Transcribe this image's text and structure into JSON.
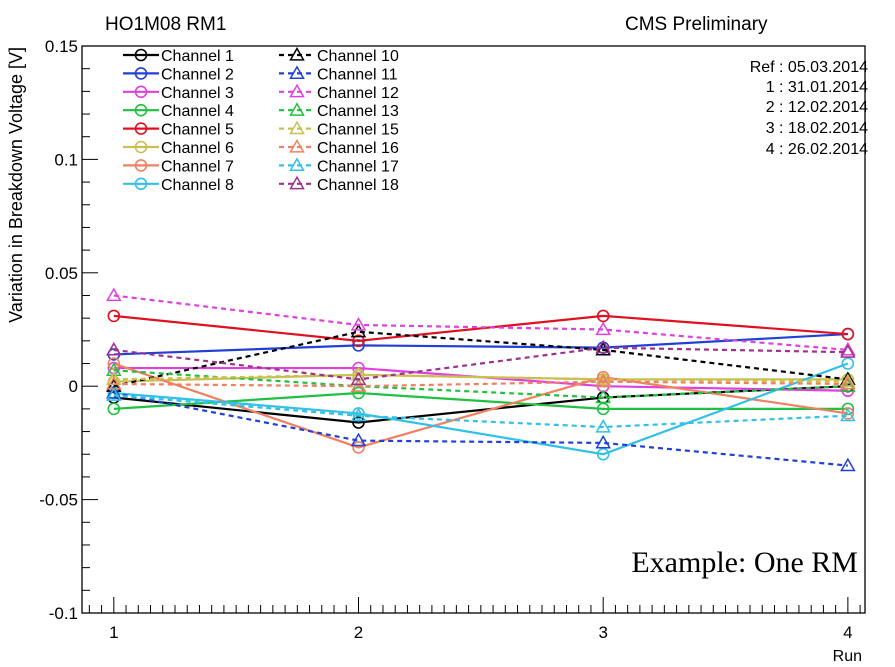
{
  "header": {
    "left_title": "HO1M08 RM1",
    "right_title": "CMS Preliminary"
  },
  "chart_data": {
    "type": "line",
    "xlabel": "Run",
    "ylabel": "Variation in Breakdown Voltage [V]",
    "x": [
      1,
      2,
      3,
      4
    ],
    "xlim": [
      0.87,
      4.07
    ],
    "ylim": [
      -0.1,
      0.15
    ],
    "xticks": [
      1,
      2,
      3,
      4
    ],
    "yticks": [
      -0.1,
      -0.05,
      0,
      0.05,
      0.1,
      0.15
    ],
    "ytick_labels": [
      "-0.1",
      "-0.05",
      "0",
      "0.05",
      "0.1",
      "0.15"
    ],
    "grid": false,
    "legend_position": "top-left",
    "series": [
      {
        "name": "Channel 1",
        "color": "#000000",
        "style": "solid",
        "marker": "circle",
        "values": [
          -0.005,
          -0.016,
          -0.005,
          0.0
        ]
      },
      {
        "name": "Channel 2",
        "color": "#2040d8",
        "style": "solid",
        "marker": "circle",
        "values": [
          0.014,
          0.018,
          0.017,
          0.023
        ]
      },
      {
        "name": "Channel 3",
        "color": "#e040e0",
        "style": "solid",
        "marker": "circle",
        "values": [
          0.008,
          0.008,
          0.0,
          -0.002
        ]
      },
      {
        "name": "Channel 4",
        "color": "#20c040",
        "style": "solid",
        "marker": "circle",
        "values": [
          -0.01,
          -0.003,
          -0.01,
          -0.01
        ]
      },
      {
        "name": "Channel 5",
        "color": "#e01020",
        "style": "solid",
        "marker": "circle",
        "values": [
          0.031,
          0.02,
          0.031,
          0.023
        ]
      },
      {
        "name": "Channel 6",
        "color": "#c8c050",
        "style": "solid",
        "marker": "circle",
        "values": [
          0.002,
          0.005,
          0.003,
          0.003
        ]
      },
      {
        "name": "Channel 7",
        "color": "#f08060",
        "style": "solid",
        "marker": "circle",
        "values": [
          0.01,
          -0.027,
          0.004,
          -0.012
        ]
      },
      {
        "name": "Channel 8",
        "color": "#30c0e8",
        "style": "solid",
        "marker": "circle",
        "values": [
          -0.003,
          -0.012,
          -0.03,
          0.01
        ]
      },
      {
        "name": "Channel 10",
        "color": "#000000",
        "style": "dashed",
        "marker": "triangle",
        "values": [
          0.0,
          0.024,
          0.016,
          0.003
        ]
      },
      {
        "name": "Channel 11",
        "color": "#2040d8",
        "style": "dashed",
        "marker": "triangle",
        "values": [
          -0.003,
          -0.024,
          -0.025,
          -0.035
        ]
      },
      {
        "name": "Channel 12",
        "color": "#e040e0",
        "style": "dashed",
        "marker": "triangle",
        "values": [
          0.04,
          0.027,
          0.025,
          0.016
        ]
      },
      {
        "name": "Channel 13",
        "color": "#20c040",
        "style": "dashed",
        "marker": "triangle",
        "values": [
          0.007,
          0.0,
          -0.005,
          0.0
        ]
      },
      {
        "name": "Channel 15",
        "color": "#c8c050",
        "style": "dashed",
        "marker": "triangle",
        "values": [
          0.003,
          0.005,
          0.003,
          0.002
        ]
      },
      {
        "name": "Channel 16",
        "color": "#f08060",
        "style": "dashed",
        "marker": "triangle",
        "values": [
          0.001,
          0.0,
          0.002,
          0.001
        ]
      },
      {
        "name": "Channel 17",
        "color": "#30c0e8",
        "style": "dashed",
        "marker": "triangle",
        "values": [
          -0.004,
          -0.013,
          -0.018,
          -0.013
        ]
      },
      {
        "name": "Channel 18",
        "color": "#a03090",
        "style": "dashed",
        "marker": "triangle",
        "values": [
          0.016,
          0.003,
          0.017,
          0.015
        ]
      }
    ],
    "annotations": {
      "reference_lines": [
        "Ref : 05.03.2014",
        "1 : 31.01.2014",
        "2 : 12.02.2014",
        "3 : 18.02.2014",
        "4 : 26.02.2014"
      ],
      "example_label": "Example: One RM"
    }
  }
}
